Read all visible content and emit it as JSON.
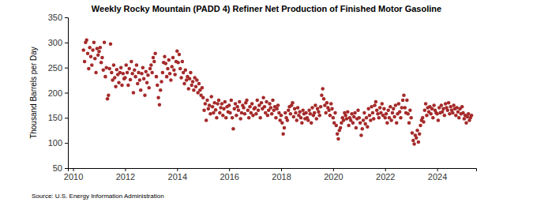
{
  "chart_data": {
    "type": "scatter",
    "title": "Weekly Rocky Mountain (PADD 4) Refiner Net Production of Finished Motor Gasoline",
    "ylabel": "Thousand Barrels per Day",
    "source": "Source: U.S. Energy Information Administration",
    "color": "#a52a2a",
    "marker": "circle",
    "grid": false,
    "xlim": [
      2009.8,
      2025.5
    ],
    "xticks": [
      2010,
      2012,
      2014,
      2016,
      2018,
      2020,
      2022,
      2024
    ],
    "ylim": [
      50,
      350
    ],
    "yticks": [
      50,
      100,
      150,
      200,
      250,
      300,
      350
    ],
    "x": [
      2010.4,
      2010.44,
      2010.48,
      2010.52,
      2010.56,
      2010.6,
      2010.64,
      2010.68,
      2010.72,
      2010.76,
      2010.8,
      2010.84,
      2010.88,
      2010.92,
      2010.96,
      2011,
      2011.04,
      2011.08,
      2011.12,
      2011.16,
      2011.2,
      2011.24,
      2011.28,
      2011.32,
      2011.36,
      2011.4,
      2011.44,
      2011.48,
      2011.52,
      2011.56,
      2011.6,
      2011.64,
      2011.68,
      2011.72,
      2011.76,
      2011.8,
      2011.84,
      2011.88,
      2011.92,
      2011.96,
      2012,
      2012.04,
      2012.08,
      2012.12,
      2012.16,
      2012.2,
      2012.24,
      2012.28,
      2012.32,
      2012.36,
      2012.4,
      2012.44,
      2012.48,
      2012.52,
      2012.56,
      2012.6,
      2012.64,
      2012.68,
      2012.72,
      2012.76,
      2012.8,
      2012.84,
      2012.88,
      2012.92,
      2012.96,
      2013,
      2013.04,
      2013.08,
      2013.12,
      2013.16,
      2013.2,
      2013.24,
      2013.28,
      2013.32,
      2013.36,
      2013.4,
      2013.44,
      2013.48,
      2013.52,
      2013.56,
      2013.6,
      2013.64,
      2013.68,
      2013.72,
      2013.76,
      2013.8,
      2013.84,
      2013.88,
      2013.92,
      2013.96,
      2014,
      2014.04,
      2014.08,
      2014.12,
      2014.16,
      2014.2,
      2014.24,
      2014.28,
      2014.32,
      2014.36,
      2014.4,
      2014.44,
      2014.48,
      2014.52,
      2014.56,
      2014.6,
      2014.64,
      2014.68,
      2014.72,
      2014.76,
      2014.8,
      2014.84,
      2014.88,
      2014.92,
      2014.96,
      2015,
      2015.04,
      2015.08,
      2015.12,
      2015.16,
      2015.2,
      2015.24,
      2015.28,
      2015.32,
      2015.36,
      2015.4,
      2015.44,
      2015.48,
      2015.52,
      2015.56,
      2015.6,
      2015.64,
      2015.68,
      2015.72,
      2015.76,
      2015.8,
      2015.84,
      2015.88,
      2015.92,
      2015.96,
      2016,
      2016.04,
      2016.08,
      2016.12,
      2016.16,
      2016.2,
      2016.24,
      2016.28,
      2016.32,
      2016.36,
      2016.4,
      2016.44,
      2016.48,
      2016.52,
      2016.56,
      2016.6,
      2016.64,
      2016.68,
      2016.72,
      2016.76,
      2016.8,
      2016.84,
      2016.88,
      2016.92,
      2016.96,
      2017,
      2017.04,
      2017.08,
      2017.12,
      2017.16,
      2017.2,
      2017.24,
      2017.28,
      2017.32,
      2017.36,
      2017.4,
      2017.44,
      2017.48,
      2017.52,
      2017.56,
      2017.6,
      2017.64,
      2017.68,
      2017.72,
      2017.76,
      2017.8,
      2017.84,
      2017.88,
      2017.92,
      2017.96,
      2018,
      2018.04,
      2018.08,
      2018.12,
      2018.16,
      2018.2,
      2018.24,
      2018.28,
      2018.32,
      2018.36,
      2018.4,
      2018.44,
      2018.48,
      2018.52,
      2018.56,
      2018.6,
      2018.64,
      2018.68,
      2018.72,
      2018.76,
      2018.8,
      2018.84,
      2018.88,
      2018.92,
      2018.96,
      2019,
      2019.04,
      2019.08,
      2019.12,
      2019.16,
      2019.2,
      2019.24,
      2019.28,
      2019.32,
      2019.36,
      2019.4,
      2019.44,
      2019.48,
      2019.52,
      2019.56,
      2019.6,
      2019.64,
      2019.68,
      2019.72,
      2019.76,
      2019.8,
      2019.84,
      2019.88,
      2019.92,
      2019.96,
      2020,
      2020.04,
      2020.08,
      2020.12,
      2020.16,
      2020.2,
      2020.24,
      2020.28,
      2020.32,
      2020.36,
      2020.4,
      2020.44,
      2020.48,
      2020.52,
      2020.56,
      2020.6,
      2020.64,
      2020.68,
      2020.72,
      2020.76,
      2020.8,
      2020.84,
      2020.88,
      2020.92,
      2020.96,
      2021,
      2021.04,
      2021.08,
      2021.12,
      2021.16,
      2021.2,
      2021.24,
      2021.28,
      2021.32,
      2021.36,
      2021.4,
      2021.44,
      2021.48,
      2021.52,
      2021.56,
      2021.6,
      2021.64,
      2021.68,
      2021.72,
      2021.76,
      2021.8,
      2021.84,
      2021.88,
      2021.92,
      2021.96,
      2022,
      2022.04,
      2022.08,
      2022.12,
      2022.16,
      2022.2,
      2022.24,
      2022.28,
      2022.32,
      2022.36,
      2022.4,
      2022.44,
      2022.48,
      2022.52,
      2022.56,
      2022.6,
      2022.64,
      2022.68,
      2022.72,
      2022.76,
      2022.8,
      2022.84,
      2022.88,
      2022.92,
      2022.96,
      2023,
      2023.04,
      2023.08,
      2023.12,
      2023.16,
      2023.2,
      2023.24,
      2023.28,
      2023.32,
      2023.36,
      2023.4,
      2023.44,
      2023.48,
      2023.52,
      2023.56,
      2023.6,
      2023.64,
      2023.68,
      2023.72,
      2023.76,
      2023.8,
      2023.84,
      2023.88,
      2023.92,
      2023.96,
      2024,
      2024.04,
      2024.08,
      2024.12,
      2024.16,
      2024.2,
      2024.24,
      2024.28,
      2024.32,
      2024.36,
      2024.4,
      2024.44,
      2024.48,
      2024.52,
      2024.56,
      2024.6,
      2024.64,
      2024.68,
      2024.72,
      2024.76,
      2024.8,
      2024.84,
      2024.88,
      2024.92,
      2024.96,
      2025,
      2025.04,
      2025.08,
      2025.12,
      2025.16,
      2025.2,
      2025.24,
      2025.28,
      2025.32
    ],
    "values": [
      285,
      262,
      300,
      305,
      278,
      248,
      290,
      272,
      255,
      285,
      300,
      268,
      240,
      288,
      275,
      282,
      290,
      260,
      270,
      245,
      300,
      232,
      250,
      188,
      195,
      248,
      297,
      240,
      225,
      255,
      230,
      212,
      246,
      236,
      220,
      240,
      250,
      215,
      238,
      228,
      230,
      255,
      240,
      215,
      248,
      226,
      262,
      238,
      200,
      245,
      232,
      255,
      218,
      240,
      225,
      205,
      238,
      250,
      228,
      195,
      242,
      220,
      235,
      210,
      248,
      255,
      240,
      270,
      262,
      278,
      232,
      215,
      190,
      176,
      205,
      222,
      240,
      260,
      272,
      258,
      232,
      248,
      265,
      238,
      225,
      252,
      270,
      245,
      236,
      262,
      283,
      260,
      276,
      248,
      230,
      262,
      240,
      218,
      245,
      225,
      232,
      208,
      228,
      240,
      215,
      222,
      205,
      230,
      212,
      225,
      200,
      218,
      205,
      195,
      210,
      190,
      165,
      178,
      145,
      185,
      168,
      175,
      158,
      192,
      172,
      160,
      180,
      166,
      150,
      178,
      185,
      160,
      170,
      178,
      155,
      168,
      182,
      150,
      172,
      162,
      175,
      160,
      185,
      150,
      128,
      168,
      178,
      155,
      172,
      165,
      182,
      148,
      160,
      175,
      170,
      158,
      180,
      185,
      165,
      150,
      172,
      160,
      178,
      155,
      168,
      170,
      158,
      185,
      165,
      175,
      150,
      180,
      168,
      190,
      172,
      160,
      182,
      155,
      165,
      178,
      170,
      158,
      185,
      165,
      172,
      150,
      168,
      175,
      160,
      145,
      155,
      140,
      118,
      130,
      160,
      150,
      145,
      165,
      172,
      158,
      175,
      180,
      152,
      168,
      160,
      145,
      170,
      155,
      162,
      150,
      140,
      165,
      158,
      148,
      160,
      150,
      145,
      165,
      158,
      140,
      170,
      155,
      160,
      175,
      148,
      168,
      162,
      155,
      172,
      195,
      208,
      188,
      175,
      160,
      180,
      170,
      165,
      155,
      178,
      168,
      150,
      140,
      160,
      135,
      118,
      108,
      125,
      130,
      140,
      150,
      145,
      160,
      155,
      148,
      162,
      135,
      150,
      145,
      158,
      140,
      152,
      160,
      130,
      148,
      165,
      150,
      140,
      115,
      128,
      145,
      160,
      138,
      150,
      132,
      168,
      155,
      145,
      172,
      160,
      148,
      175,
      182,
      165,
      158,
      150,
      170,
      160,
      178,
      155,
      168,
      150,
      158,
      140,
      165,
      150,
      172,
      145,
      160,
      168,
      152,
      175,
      140,
      158,
      178,
      162,
      150,
      170,
      185,
      195,
      170,
      160,
      185,
      158,
      140,
      165,
      150,
      120,
      105,
      98,
      115,
      110,
      125,
      102,
      118,
      135,
      145,
      150,
      142,
      165,
      178,
      155,
      170,
      162,
      172,
      158,
      168,
      150,
      175,
      165,
      160,
      158,
      145,
      170,
      160,
      175,
      162,
      168,
      155,
      178,
      170,
      165,
      180,
      158,
      172,
      165,
      160,
      175,
      168,
      155,
      170,
      162,
      150,
      168,
      158,
      172,
      160,
      148,
      155,
      140,
      152,
      158,
      145,
      150,
      155
    ]
  }
}
